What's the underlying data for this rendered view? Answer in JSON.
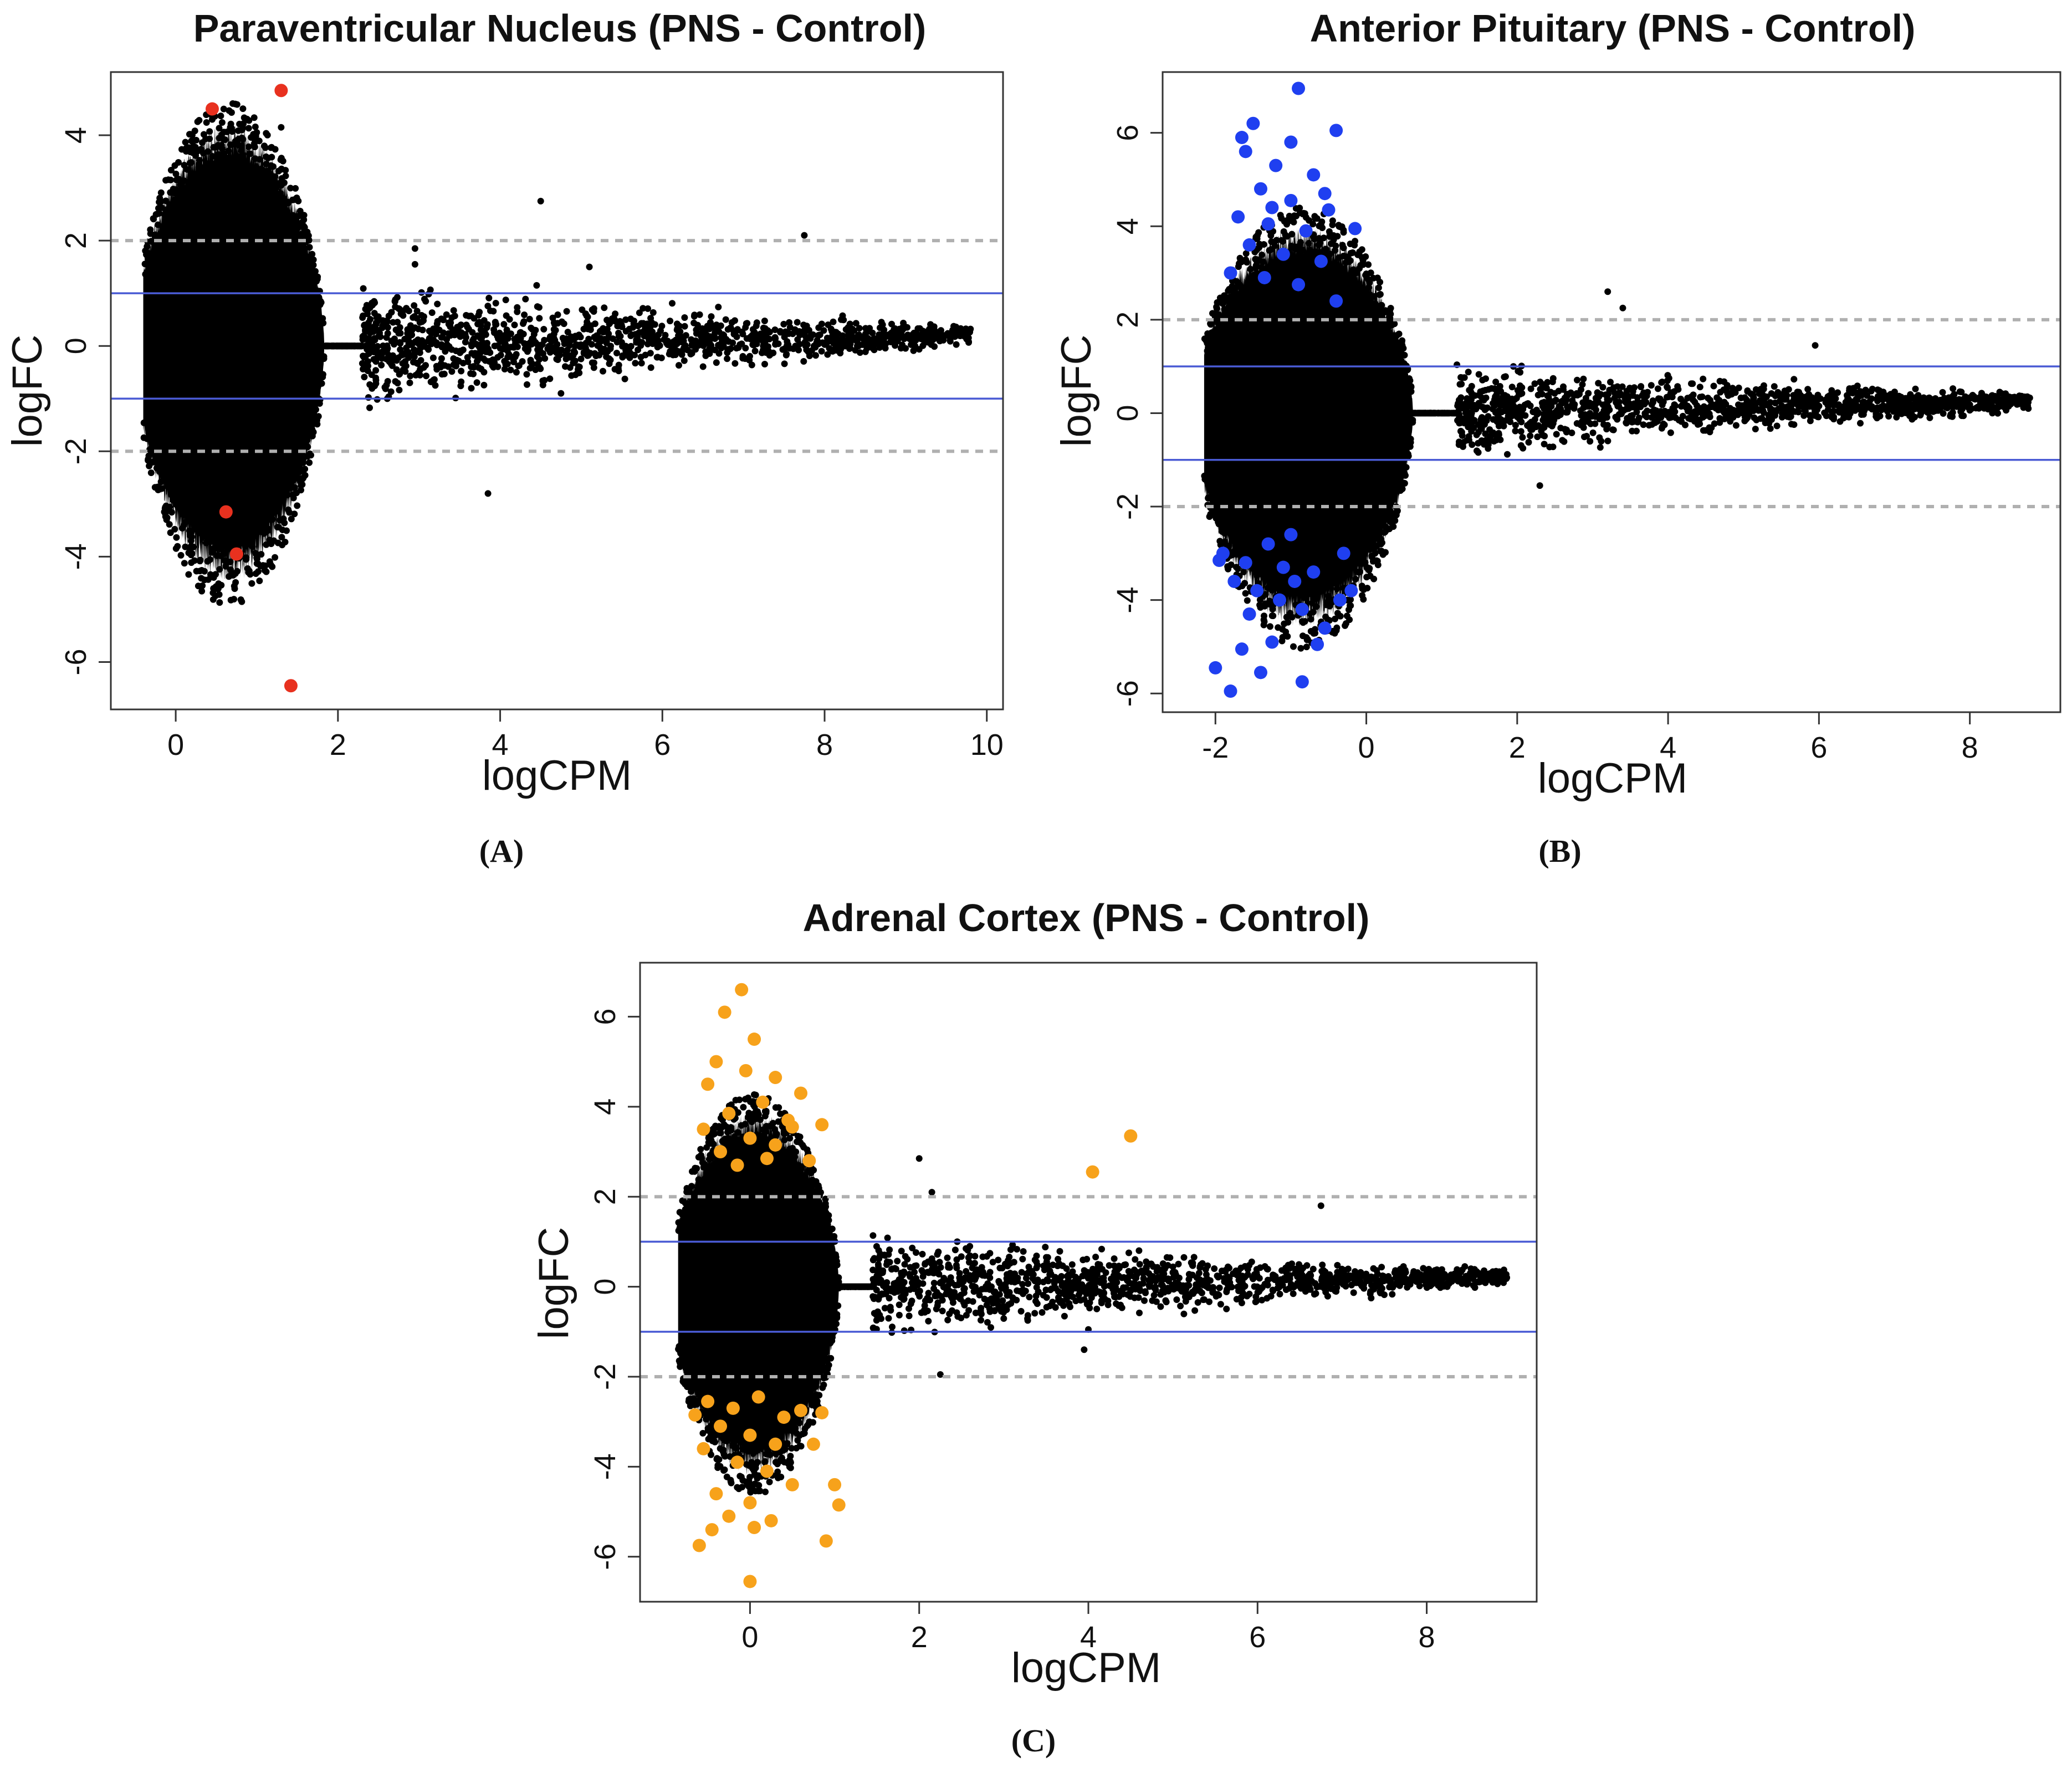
{
  "chart_data": [
    {
      "type": "scatter",
      "panel": "A",
      "panel_label": "(A)",
      "title": "Paraventricular Nucleus  (PNS - Control)",
      "xlabel": "logCPM",
      "ylabel": "logFC",
      "xlim": [
        -0.8,
        10.2
      ],
      "ylim": [
        -6.9,
        5.2
      ],
      "xticks": [
        0,
        2,
        4,
        6,
        8,
        10
      ],
      "yticks": [
        -6,
        -4,
        -2,
        0,
        2,
        4
      ],
      "hlines_solid": [
        -1,
        1
      ],
      "hlines_dashed": [
        -2,
        2
      ],
      "line_colors": {
        "solid": "#4a5bd4",
        "dashed": "#b0b0b0"
      },
      "bulk": {
        "x_range": [
          -0.4,
          2.3
        ],
        "upper_envelope": 4.2,
        "lower_envelope": -4.5
      },
      "tail": {
        "x_range": [
          2.3,
          9.8
        ],
        "center": 0.2,
        "spread_start": 0.9,
        "spread_end": 0.15
      },
      "outliers_black": [
        [
          4.5,
          2.75
        ],
        [
          4.45,
          1.15
        ],
        [
          5.1,
          1.5
        ],
        [
          7.75,
          2.1
        ],
        [
          3.85,
          -2.8
        ],
        [
          4.75,
          -0.9
        ],
        [
          2.95,
          1.85
        ],
        [
          2.95,
          1.55
        ],
        [
          1.3,
          4.15
        ],
        [
          0.45,
          4.3
        ]
      ],
      "highlight_color": "#e8311f",
      "highlight_points": [
        [
          0.45,
          4.5
        ],
        [
          1.3,
          4.85
        ],
        [
          0.62,
          -3.15
        ],
        [
          0.75,
          -3.95
        ],
        [
          1.42,
          -6.45
        ]
      ]
    },
    {
      "type": "scatter",
      "panel": "B",
      "panel_label": "(B)",
      "title": "Anterior Pituitary (PNS - Control)",
      "xlabel": "logCPM",
      "ylabel": "logFC",
      "xlim": [
        -2.7,
        9.2
      ],
      "ylim": [
        -6.4,
        7.3
      ],
      "xticks": [
        -2,
        0,
        2,
        4,
        6,
        8
      ],
      "yticks": [
        -6,
        -4,
        -2,
        0,
        2,
        4,
        6
      ],
      "hlines_solid": [
        -1,
        1
      ],
      "hlines_dashed": [
        -2,
        2
      ],
      "line_colors": {
        "solid": "#4a5bd4",
        "dashed": "#b0b0b0"
      },
      "bulk": {
        "x_range": [
          -2.15,
          1.2
        ],
        "upper_envelope": 4.0,
        "lower_envelope": -4.6
      },
      "tail": {
        "x_range": [
          1.2,
          8.8
        ],
        "center": 0.25,
        "spread_start": 0.8,
        "spread_end": 0.15
      },
      "outliers_black": [
        [
          3.2,
          2.6
        ],
        [
          3.4,
          2.25
        ],
        [
          5.95,
          1.45
        ],
        [
          2.3,
          -1.55
        ],
        [
          1.95,
          1.0
        ]
      ],
      "highlight_color": "#1f3ff0",
      "highlight_points": [
        [
          -1.5,
          6.2
        ],
        [
          -0.9,
          6.95
        ],
        [
          -0.4,
          6.05
        ],
        [
          -1.6,
          5.6
        ],
        [
          -1.2,
          5.3
        ],
        [
          -0.7,
          5.1
        ],
        [
          -1.4,
          4.8
        ],
        [
          -1.0,
          4.55
        ],
        [
          -0.5,
          4.35
        ],
        [
          -1.7,
          4.2
        ],
        [
          -1.3,
          4.05
        ],
        [
          -0.8,
          3.9
        ],
        [
          -0.15,
          3.95
        ],
        [
          -1.55,
          3.6
        ],
        [
          -1.1,
          3.4
        ],
        [
          -0.6,
          3.25
        ],
        [
          -1.8,
          3.0
        ],
        [
          -1.35,
          2.9
        ],
        [
          -0.9,
          2.75
        ],
        [
          -0.4,
          2.4
        ],
        [
          -1.65,
          5.9
        ],
        [
          -1.0,
          5.8
        ],
        [
          -1.25,
          4.4
        ],
        [
          -0.55,
          4.7
        ],
        [
          -1.9,
          -3.0
        ],
        [
          -1.6,
          -3.2
        ],
        [
          -1.3,
          -2.8
        ],
        [
          -1.0,
          -2.6
        ],
        [
          -0.7,
          -3.4
        ],
        [
          -0.3,
          -3.0
        ],
        [
          -1.75,
          -3.6
        ],
        [
          -1.45,
          -3.8
        ],
        [
          -1.15,
          -4.0
        ],
        [
          -0.85,
          -4.2
        ],
        [
          -0.55,
          -4.6
        ],
        [
          -1.55,
          -4.3
        ],
        [
          -1.25,
          -4.9
        ],
        [
          -0.65,
          -4.95
        ],
        [
          -2.0,
          -5.45
        ],
        [
          -1.65,
          -5.05
        ],
        [
          -1.4,
          -5.55
        ],
        [
          -1.8,
          -5.95
        ],
        [
          -0.85,
          -5.75
        ],
        [
          -1.1,
          -3.3
        ],
        [
          -0.2,
          -3.8
        ],
        [
          -0.35,
          -4.0
        ],
        [
          -1.95,
          -3.15
        ],
        [
          -0.95,
          -3.6
        ]
      ]
    },
    {
      "type": "scatter",
      "panel": "C",
      "panel_label": "(C)",
      "title": "Adrenal Cortex (PNS - Control)",
      "xlabel": "logCPM",
      "ylabel": "logFC",
      "xlim": [
        -1.3,
        9.3
      ],
      "ylim": [
        -7.0,
        7.2
      ],
      "xticks": [
        0,
        2,
        4,
        6,
        8
      ],
      "yticks": [
        -6,
        -4,
        -2,
        0,
        2,
        4,
        6
      ],
      "hlines_solid": [
        -1,
        1
      ],
      "hlines_dashed": [
        -2,
        2
      ],
      "line_colors": {
        "solid": "#4a5bd4",
        "dashed": "#b0b0b0"
      },
      "bulk": {
        "x_range": [
          -0.85,
          1.45
        ],
        "upper_envelope": 3.9,
        "lower_envelope": -4.2
      },
      "tail": {
        "x_range": [
          1.45,
          8.95
        ],
        "center": 0.2,
        "spread_start": 0.9,
        "spread_end": 0.15
      },
      "outliers_black": [
        [
          2.0,
          2.85
        ],
        [
          2.15,
          2.1
        ],
        [
          6.75,
          1.8
        ],
        [
          3.95,
          -1.4
        ],
        [
          2.25,
          -1.95
        ],
        [
          4.0,
          -0.95
        ],
        [
          2.45,
          1.0
        ]
      ],
      "highlight_color": "#f7a21b",
      "highlight_points": [
        [
          -0.1,
          6.6
        ],
        [
          -0.3,
          6.1
        ],
        [
          0.05,
          5.5
        ],
        [
          -0.4,
          5.0
        ],
        [
          -0.05,
          4.8
        ],
        [
          0.3,
          4.65
        ],
        [
          0.6,
          4.3
        ],
        [
          -0.5,
          4.5
        ],
        [
          0.15,
          4.1
        ],
        [
          -0.25,
          3.85
        ],
        [
          0.45,
          3.7
        ],
        [
          -0.55,
          3.5
        ],
        [
          0.0,
          3.3
        ],
        [
          0.3,
          3.15
        ],
        [
          -0.35,
          3.0
        ],
        [
          0.2,
          2.85
        ],
        [
          0.7,
          2.8
        ],
        [
          -0.15,
          2.7
        ],
        [
          0.5,
          3.55
        ],
        [
          0.85,
          3.6
        ],
        [
          4.05,
          2.55
        ],
        [
          4.5,
          3.35
        ],
        [
          -0.5,
          -2.55
        ],
        [
          -0.2,
          -2.7
        ],
        [
          0.1,
          -2.45
        ],
        [
          0.4,
          -2.9
        ],
        [
          -0.35,
          -3.1
        ],
        [
          0.0,
          -3.3
        ],
        [
          0.3,
          -3.5
        ],
        [
          0.6,
          -2.75
        ],
        [
          -0.55,
          -3.6
        ],
        [
          -0.15,
          -3.9
        ],
        [
          0.2,
          -4.1
        ],
        [
          0.5,
          -4.4
        ],
        [
          -0.4,
          -4.6
        ],
        [
          0.0,
          -4.8
        ],
        [
          -0.25,
          -5.1
        ],
        [
          0.25,
          -5.2
        ],
        [
          -0.6,
          -5.75
        ],
        [
          -0.45,
          -5.4
        ],
        [
          0.05,
          -5.35
        ],
        [
          0.9,
          -5.65
        ],
        [
          0.0,
          -6.55
        ],
        [
          1.05,
          -4.85
        ],
        [
          1.0,
          -4.4
        ],
        [
          0.75,
          -3.5
        ],
        [
          0.85,
          -2.8
        ],
        [
          -0.65,
          -2.85
        ]
      ]
    }
  ]
}
